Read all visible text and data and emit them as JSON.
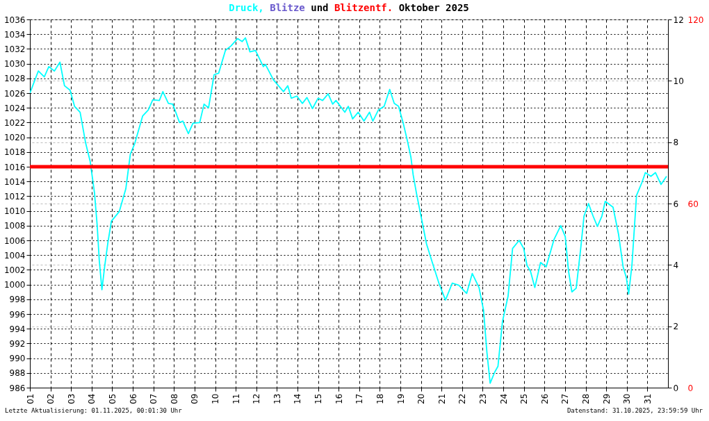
{
  "chart_data": {
    "type": "line",
    "title": "Oktober 2025",
    "legend": "top",
    "annotations": [
      "und",
      "Letzte Aktualisierung: 01.11.2025, 00:01:30 Uhr",
      "Datenstand: 31.10.2025, 23:59:59 Uhr"
    ],
    "xlim": [
      1,
      32
    ],
    "xticks": [
      {
        "value": 1,
        "label": "01"
      },
      {
        "value": 2,
        "label": "02"
      },
      {
        "value": 3,
        "label": "03"
      },
      {
        "value": 4,
        "label": "04"
      },
      {
        "value": 5,
        "label": "05"
      },
      {
        "value": 6,
        "label": "06"
      },
      {
        "value": 7,
        "label": "07"
      },
      {
        "value": 8,
        "label": "08"
      },
      {
        "value": 9,
        "label": "09"
      },
      10,
      11,
      12,
      13,
      14,
      15,
      16,
      17,
      18,
      19,
      20,
      21,
      22,
      23,
      24,
      25,
      26,
      27,
      28,
      29,
      30,
      31
    ],
    "ylim": [
      986,
      1036
    ],
    "yticks": [
      986,
      988,
      990,
      992,
      994,
      996,
      998,
      1000,
      1002,
      1004,
      1006,
      1008,
      1010,
      1012,
      1014,
      1016,
      1018,
      1020,
      1022,
      1024,
      1026,
      1028,
      1030,
      1032,
      1034,
      1036
    ],
    "y2lim": [
      0,
      12
    ],
    "y2ticks": [
      0,
      2,
      4,
      6,
      8,
      10,
      12
    ],
    "y3lim": [
      0,
      120
    ],
    "y3ticks": [
      0,
      60,
      120
    ],
    "grid": true,
    "series": [
      {
        "name": "Druck,",
        "color": "#00ffff",
        "x": [
          1.0,
          1.07,
          1.41,
          1.7,
          1.92,
          2.19,
          2.46,
          2.68,
          2.95,
          3.17,
          3.44,
          3.71,
          3.93,
          4.14,
          4.27,
          4.37,
          4.5,
          4.63,
          4.79,
          4.96,
          5.34,
          5.66,
          5.88,
          6.1,
          6.48,
          6.75,
          6.97,
          7.29,
          7.46,
          7.73,
          7.94,
          8.27,
          8.43,
          8.7,
          8.92,
          9.25,
          9.46,
          9.68,
          9.95,
          10.17,
          10.5,
          10.77,
          11.09,
          11.31,
          11.47,
          11.69,
          11.96,
          12.34,
          12.44,
          12.83,
          13.32,
          13.53,
          13.7,
          13.97,
          14.24,
          14.46,
          14.73,
          15.0,
          15.22,
          15.49,
          15.71,
          15.87,
          16.3,
          16.47,
          16.68,
          16.95,
          17.23,
          17.5,
          17.66,
          17.93,
          18.21,
          18.48,
          18.7,
          18.91,
          19.13,
          19.35,
          19.51,
          19.62,
          19.78,
          20.0,
          20.27,
          20.55,
          20.87,
          21.19,
          21.52,
          21.84,
          22.22,
          22.49,
          22.82,
          23.04,
          23.2,
          23.36,
          23.58,
          23.74,
          23.96,
          24.23,
          24.45,
          24.77,
          24.99,
          25.15,
          25.32,
          25.53,
          25.81,
          26.08,
          26.46,
          26.79,
          27.01,
          27.17,
          27.33,
          27.54,
          27.76,
          27.92,
          28.14,
          28.36,
          28.57,
          28.79,
          28.95,
          29.33,
          29.6,
          29.82,
          29.98,
          30.09,
          30.25,
          30.47,
          30.74,
          30.9,
          31.17,
          31.39,
          31.66,
          31.93
        ],
        "values": [
          1026.0,
          1026.5,
          1029.0,
          1028.2,
          1029.6,
          1029.0,
          1030.2,
          1027.0,
          1026.4,
          1024.2,
          1023.4,
          1019.2,
          1016.7,
          1012.4,
          1008.0,
          1003.3,
          999.3,
          1002.4,
          1005.7,
          1008.6,
          1009.9,
          1013.0,
          1017.7,
          1019.2,
          1022.9,
          1023.7,
          1025.1,
          1025.0,
          1026.2,
          1024.6,
          1024.5,
          1022.0,
          1022.2,
          1020.5,
          1021.9,
          1022.0,
          1024.5,
          1024.0,
          1028.5,
          1028.7,
          1031.8,
          1032.4,
          1033.4,
          1033.0,
          1033.5,
          1031.6,
          1031.8,
          1029.6,
          1029.9,
          1027.8,
          1026.2,
          1027.0,
          1025.3,
          1025.6,
          1024.6,
          1025.4,
          1023.9,
          1025.3,
          1025.0,
          1025.9,
          1024.5,
          1025.0,
          1023.4,
          1024.2,
          1022.5,
          1023.4,
          1022.2,
          1023.4,
          1022.2,
          1023.7,
          1024.2,
          1026.5,
          1024.6,
          1024.2,
          1022.0,
          1019.4,
          1017.3,
          1014.9,
          1012.4,
          1009.3,
          1005.5,
          1003.0,
          1000.2,
          997.9,
          1000.2,
          999.9,
          998.8,
          1001.5,
          999.6,
          996.5,
          990.9,
          986.6,
          988.1,
          988.9,
          995.0,
          998.4,
          1004.9,
          1006.0,
          1004.9,
          1002.6,
          1001.8,
          999.6,
          1003.0,
          1002.4,
          1006.1,
          1008.0,
          1006.5,
          1001.8,
          999.0,
          999.5,
          1004.9,
          1009.3,
          1011.0,
          1009.3,
          1007.9,
          1009.3,
          1011.3,
          1010.5,
          1006.8,
          1002.4,
          1000.9,
          998.7,
          1002.7,
          1012.1,
          1013.9,
          1015.2,
          1014.7,
          1015.2,
          1013.6,
          1014.7
        ]
      },
      {
        "name": "Blitze",
        "color": "#6a5acd",
        "axis": "y2"
      },
      {
        "name": "Blitzentf.",
        "color": "#ff0000",
        "axis": "y3",
        "x": [
          1,
          32
        ],
        "values": [
          72,
          72
        ]
      }
    ]
  }
}
